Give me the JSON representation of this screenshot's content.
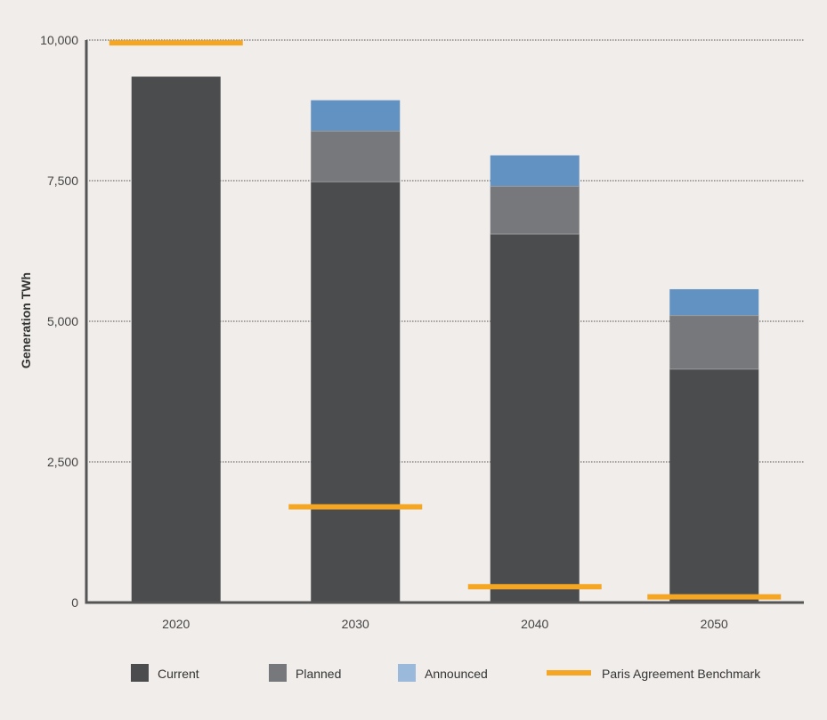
{
  "chart_data": {
    "type": "bar",
    "stacked": true,
    "categories": [
      "2020",
      "2030",
      "2040",
      "2050"
    ],
    "series": [
      {
        "name": "Current",
        "values": [
          9350,
          7480,
          6550,
          4150
        ],
        "color": "#4b4c4e"
      },
      {
        "name": "Planned",
        "values": [
          0,
          900,
          850,
          950
        ],
        "color": "#77787b"
      },
      {
        "name": "Announced",
        "values": [
          0,
          550,
          550,
          470
        ],
        "color": "#6292c2"
      }
    ],
    "benchmark": {
      "name": "Paris Agreement Benchmark",
      "values": [
        9950,
        1700,
        280,
        100
      ],
      "color": "#f5a623"
    },
    "xlabel": "",
    "ylabel": "Generation TWh",
    "ylim": [
      0,
      10000
    ],
    "yticks": [
      0,
      2500,
      5000,
      7500,
      10000
    ],
    "ytick_labels": [
      "0",
      "2,500",
      "5,000",
      "7,500",
      "10,000"
    ],
    "grid": true,
    "legend_position": "bottom",
    "legend": [
      {
        "label": "Current",
        "color": "#4b4c4e",
        "kind": "swatch"
      },
      {
        "label": "Planned",
        "color": "#77787b",
        "kind": "swatch"
      },
      {
        "label": "Announced",
        "color": "#9bbadb",
        "kind": "swatch"
      },
      {
        "label": "Paris Agreement Benchmark",
        "color": "#f5a623",
        "kind": "line"
      }
    ]
  }
}
